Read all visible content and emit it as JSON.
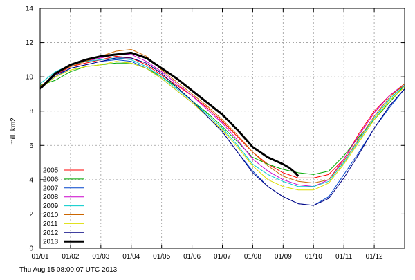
{
  "chart_data": {
    "type": "line",
    "title": "",
    "xlabel": "",
    "ylabel": "mill. km2",
    "xlim": [
      0,
      12
    ],
    "ylim": [
      0,
      14
    ],
    "x_tick_labels": [
      "01/01",
      "01/02",
      "01/03",
      "01/04",
      "01/05",
      "01/06",
      "01/07",
      "01/08",
      "01/09",
      "01/10",
      "01/11",
      "01/12"
    ],
    "y_ticks": [
      0,
      2,
      4,
      6,
      8,
      10,
      12,
      14
    ],
    "grid": true,
    "legend_position": "bottom-left",
    "footer": "Thu Aug 15 08:00:07 UTC 2013",
    "series": [
      {
        "name": "2005",
        "color": "#ff0000",
        "x": [
          0,
          0.5,
          1,
          1.5,
          2,
          2.5,
          3,
          3.5,
          4,
          4.5,
          5,
          5.5,
          6,
          6.5,
          7,
          7.5,
          8,
          8.5,
          9,
          9.5,
          10,
          10.5,
          11,
          11.5,
          12
        ],
        "y": [
          9.4,
          10.1,
          10.6,
          10.8,
          11.0,
          11.2,
          11.1,
          10.7,
          10.1,
          9.5,
          8.9,
          8.2,
          7.4,
          6.5,
          5.6,
          4.9,
          4.4,
          4.1,
          4.1,
          4.3,
          5.2,
          6.7,
          8.0,
          8.9,
          9.5
        ]
      },
      {
        "name": "2006",
        "color": "#00aa00",
        "x": [
          0,
          0.5,
          1,
          1.5,
          2,
          2.5,
          3,
          3.5,
          4,
          4.5,
          5,
          5.5,
          6,
          6.5,
          7,
          7.5,
          8,
          8.5,
          9,
          9.5,
          10,
          10.5,
          11,
          11.5,
          12
        ],
        "y": [
          9.5,
          9.8,
          10.3,
          10.6,
          10.7,
          10.8,
          10.8,
          10.5,
          10.0,
          9.4,
          8.6,
          7.9,
          7.1,
          6.2,
          5.3,
          4.9,
          4.6,
          4.4,
          4.3,
          4.5,
          5.4,
          6.5,
          7.5,
          8.5,
          9.5
        ]
      },
      {
        "name": "2007",
        "color": "#0044cc",
        "x": [
          0,
          0.5,
          1,
          1.5,
          2,
          2.5,
          3,
          3.5,
          4,
          4.5,
          5,
          5.5,
          6,
          6.5,
          7,
          7.5,
          8,
          8.5,
          9,
          9.5,
          10,
          10.5,
          11,
          11.5,
          12
        ],
        "y": [
          9.3,
          10.0,
          10.5,
          10.7,
          10.9,
          11.0,
          10.9,
          10.5,
          9.9,
          9.2,
          8.5,
          7.7,
          6.8,
          5.6,
          4.5,
          3.6,
          3.0,
          2.6,
          2.5,
          3.0,
          4.3,
          5.6,
          7.0,
          8.2,
          9.3
        ]
      },
      {
        "name": "2008",
        "color": "#cc00cc",
        "x": [
          0,
          0.5,
          1,
          1.5,
          2,
          2.5,
          3,
          3.5,
          4,
          4.5,
          5,
          5.5,
          6,
          6.5,
          7,
          7.5,
          8,
          8.5,
          9,
          9.5,
          10,
          10.5,
          11,
          11.5,
          12
        ],
        "y": [
          9.4,
          10.2,
          10.7,
          10.9,
          11.1,
          11.3,
          11.3,
          10.9,
          10.3,
          9.6,
          8.9,
          8.1,
          7.3,
          6.3,
          5.2,
          4.5,
          4.0,
          3.7,
          3.6,
          4.0,
          5.2,
          6.6,
          7.9,
          8.9,
          9.6
        ]
      },
      {
        "name": "2009",
        "color": "#00cccc",
        "x": [
          0,
          0.5,
          1,
          1.5,
          2,
          2.5,
          3,
          3.5,
          4,
          4.5,
          5,
          5.5,
          6,
          6.5,
          7,
          7.5,
          8,
          8.5,
          9,
          9.5,
          10,
          10.5,
          11,
          11.5,
          12
        ],
        "y": [
          9.6,
          10.3,
          10.7,
          10.9,
          11.0,
          11.1,
          11.0,
          10.6,
          10.0,
          9.3,
          8.6,
          7.8,
          7.0,
          6.0,
          4.9,
          4.3,
          3.9,
          3.6,
          3.6,
          3.9,
          5.0,
          6.3,
          7.6,
          8.7,
          9.5
        ]
      },
      {
        "name": "2010",
        "color": "#cc6600",
        "x": [
          0,
          0.5,
          1,
          1.5,
          2,
          2.5,
          3,
          3.5,
          4,
          4.5,
          5,
          5.5,
          6,
          6.5,
          7,
          7.5,
          8,
          8.5,
          9,
          9.5,
          10,
          10.5,
          11,
          11.5,
          12
        ],
        "y": [
          9.4,
          10.2,
          10.6,
          10.9,
          11.2,
          11.5,
          11.6,
          11.2,
          10.4,
          9.7,
          9.0,
          8.3,
          7.5,
          6.6,
          5.6,
          4.8,
          4.2,
          3.9,
          3.8,
          4.0,
          5.1,
          6.4,
          7.7,
          8.8,
          9.6
        ]
      },
      {
        "name": "2011",
        "color": "#dddd00",
        "x": [
          0,
          0.5,
          1,
          1.5,
          2,
          2.5,
          3,
          3.5,
          4,
          4.5,
          5,
          5.5,
          6,
          6.5,
          7,
          7.5,
          8,
          8.5,
          9,
          9.5,
          10,
          10.5,
          11,
          11.5,
          12
        ],
        "y": [
          9.3,
          10.0,
          10.4,
          10.6,
          10.7,
          10.9,
          10.8,
          10.5,
          9.9,
          9.2,
          8.5,
          7.7,
          6.9,
          5.9,
          4.8,
          4.0,
          3.6,
          3.4,
          3.4,
          3.8,
          4.9,
          6.2,
          7.5,
          8.6,
          9.4
        ]
      },
      {
        "name": "2012",
        "color": "#000080",
        "x": [
          0,
          0.5,
          1,
          1.5,
          2,
          2.5,
          3,
          3.5,
          4,
          4.5,
          5,
          5.5,
          6,
          6.5,
          7,
          7.5,
          8,
          8.5,
          9,
          9.5,
          10,
          10.5,
          11,
          11.5,
          12
        ],
        "y": [
          9.3,
          10.1,
          10.5,
          10.7,
          10.9,
          11.1,
          11.1,
          10.8,
          10.2,
          9.4,
          8.6,
          7.7,
          6.8,
          5.6,
          4.4,
          3.6,
          3.0,
          2.6,
          2.5,
          2.9,
          4.1,
          5.5,
          7.0,
          8.3,
          9.3
        ]
      },
      {
        "name": "2013",
        "color": "#000000",
        "bold": true,
        "x": [
          0,
          0.5,
          1,
          1.5,
          2,
          2.5,
          3,
          3.5,
          4,
          4.5,
          5,
          5.5,
          6,
          6.5,
          7,
          7.5,
          8,
          8.2,
          8.4,
          8.5
        ],
        "y": [
          9.3,
          10.2,
          10.7,
          11.0,
          11.2,
          11.3,
          11.4,
          11.1,
          10.5,
          9.9,
          9.2,
          8.5,
          7.8,
          6.9,
          5.9,
          5.3,
          4.9,
          4.7,
          4.4,
          4.2
        ]
      }
    ]
  }
}
